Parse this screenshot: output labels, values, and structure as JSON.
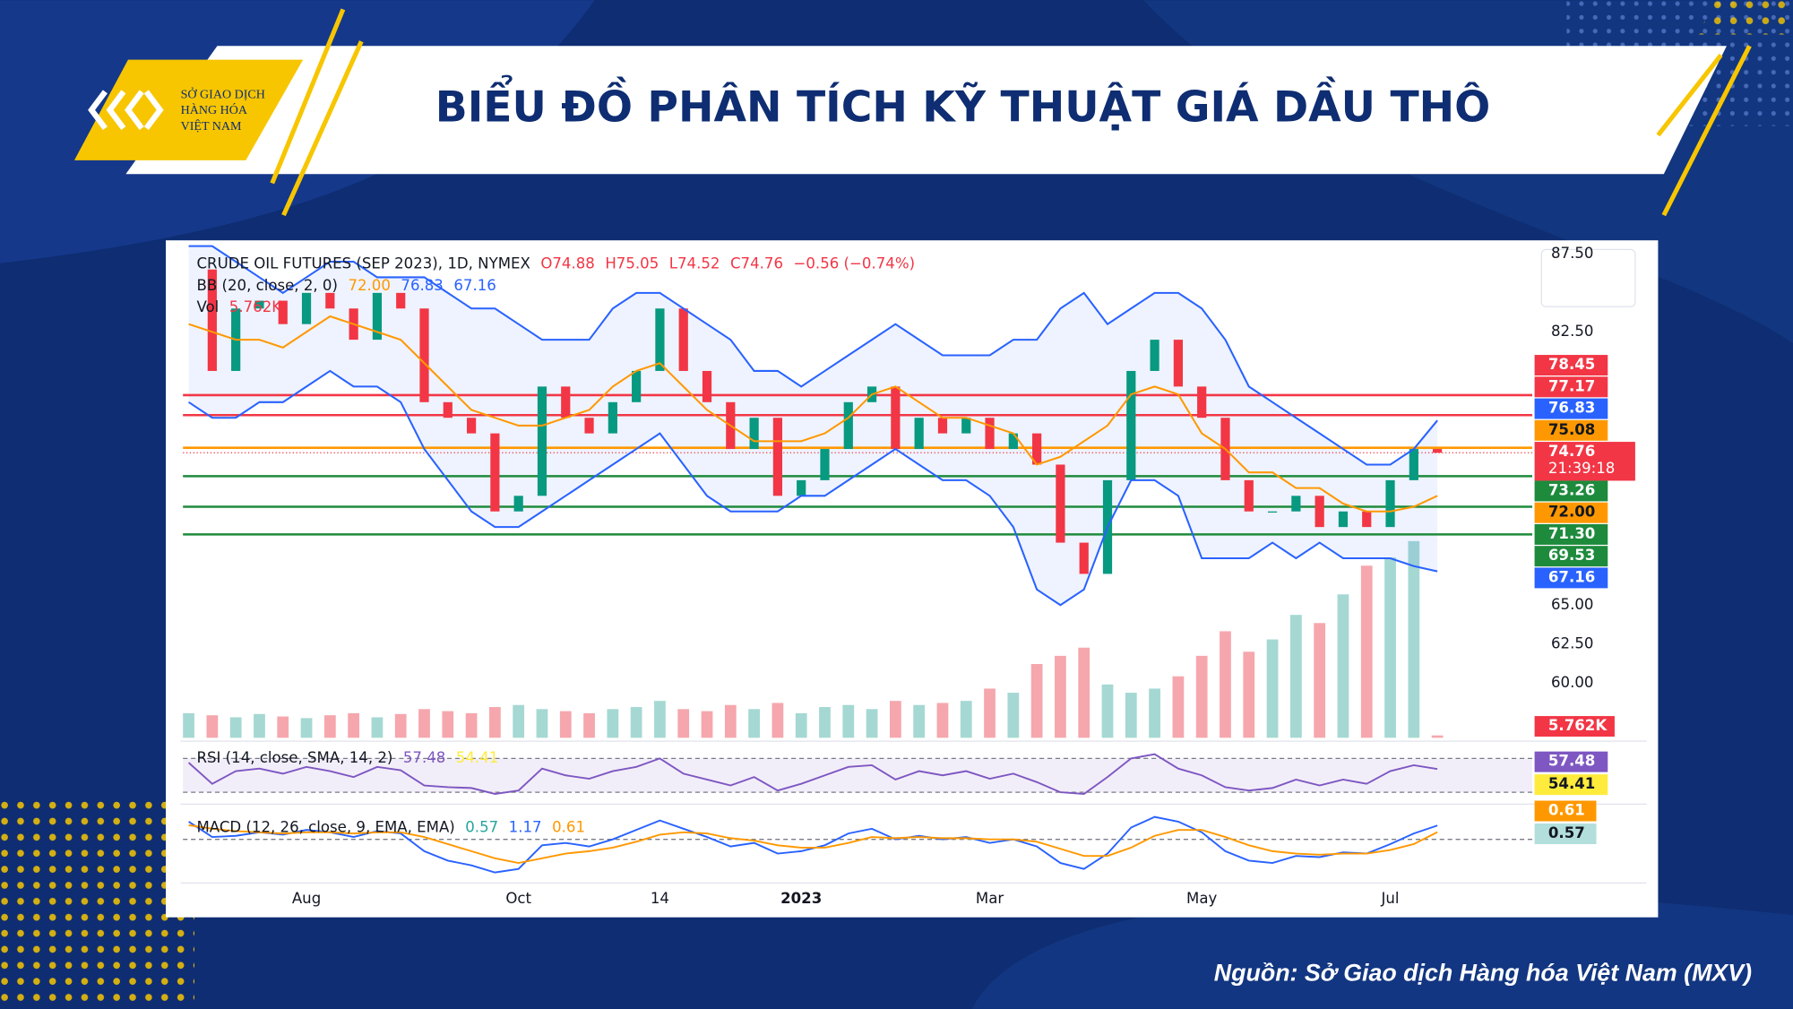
{
  "header": {
    "logo_lines": [
      "SỞ GIAO DỊCH",
      "HÀNG HÓA",
      "VIỆT NAM"
    ],
    "title": "BIỂU ĐỒ PHÂN TÍCH KỸ THUẬT GIÁ DẦU THÔ"
  },
  "chart_data": {
    "type": "line",
    "legend": [
      [
        {
          "text": "CRUDE OIL FUTURES (SEP 2023), 1D, NYMEX",
          "color": "#131722"
        },
        {
          "text": "O74.88",
          "color": "#f23645"
        },
        {
          "text": "H75.05",
          "color": "#f23645"
        },
        {
          "text": "L74.52",
          "color": "#f23645"
        },
        {
          "text": "C74.76",
          "color": "#f23645"
        },
        {
          "text": "−0.56 (−0.74%)",
          "color": "#f23645"
        }
      ],
      [
        {
          "text": "BB (20, close, 2, 0)",
          "color": "#131722"
        },
        {
          "text": "72.00",
          "color": "#ff9800"
        },
        {
          "text": "76.83",
          "color": "#2962ff"
        },
        {
          "text": "67.16",
          "color": "#2962ff"
        }
      ],
      [
        {
          "text": "Vol",
          "color": "#131722"
        },
        {
          "text": "5.762K",
          "color": "#f23645"
        }
      ]
    ],
    "categories": [
      null,
      null,
      null,
      null,
      null,
      "Aug",
      null,
      null,
      null,
      null,
      null,
      null,
      null,
      null,
      "Oct",
      null,
      null,
      null,
      null,
      null,
      "14",
      null,
      null,
      null,
      null,
      null,
      "2023",
      null,
      null,
      null,
      null,
      null,
      null,
      null,
      "Mar",
      null,
      null,
      null,
      null,
      null,
      null,
      null,
      null,
      "May",
      null,
      null,
      null,
      null,
      null,
      null,
      null,
      "Jul",
      null,
      null
    ],
    "series": [
      {
        "name": "close",
        "color": "#131722",
        "values": [
          86.5,
          80,
          84,
          84.5,
          83,
          85,
          84,
          82,
          85,
          84,
          78,
          77,
          76,
          71,
          72,
          79,
          77,
          76,
          78,
          80,
          84,
          80,
          78,
          75,
          77,
          72,
          73,
          75,
          78,
          79,
          75,
          77,
          76,
          77,
          75,
          76,
          74,
          69,
          67,
          73,
          80,
          82,
          79,
          77,
          73,
          71,
          71,
          72,
          70,
          71,
          70,
          73,
          75,
          74.76
        ]
      },
      {
        "name": "bb_upper",
        "color": "#2962ff",
        "values": [
          88,
          88,
          87,
          86,
          85,
          86,
          87,
          87,
          86,
          86,
          86,
          85,
          84,
          84,
          83,
          82,
          82,
          82,
          84,
          85,
          85,
          84,
          83,
          82,
          80,
          80,
          79,
          80,
          81,
          82,
          83,
          82,
          81,
          81,
          81,
          82,
          82,
          84,
          85,
          83,
          84,
          85,
          85,
          84,
          82,
          79,
          78,
          77,
          76,
          75,
          74,
          74,
          75,
          76.83
        ]
      },
      {
        "name": "bb_basis",
        "color": "#ff9800",
        "values": [
          83,
          82.5,
          82,
          82,
          81.5,
          82.5,
          83.5,
          83,
          82.5,
          82,
          80.5,
          79,
          77.5,
          77,
          76.5,
          76.5,
          77,
          77.5,
          79,
          80,
          80.5,
          79,
          77.5,
          76.5,
          75.5,
          75.5,
          75.5,
          76,
          77,
          78.5,
          79,
          78,
          77,
          77,
          76.5,
          76,
          74,
          74.5,
          75.5,
          76.5,
          78.5,
          79,
          78.5,
          76,
          75,
          73.5,
          73.5,
          72.5,
          72.5,
          71.5,
          71,
          71,
          71.3,
          72
        ]
      },
      {
        "name": "bb_lower",
        "color": "#2962ff",
        "values": [
          78,
          77,
          77,
          78,
          78,
          79,
          80,
          79,
          79,
          78,
          75,
          73,
          71,
          70,
          70,
          71,
          72,
          73,
          74,
          75,
          76,
          74,
          72,
          71,
          71,
          71,
          72,
          72,
          73,
          74,
          75,
          74,
          73,
          73,
          72,
          70,
          66,
          65,
          66,
          70,
          73,
          73,
          72,
          68,
          68,
          68,
          69,
          68,
          69,
          68,
          68,
          68,
          67.5,
          67.16
        ]
      }
    ],
    "ylim": [
      56.5,
      88
    ],
    "yticks": [
      {
        "value": 87.5,
        "label": "87.50"
      },
      {
        "value": 82.5,
        "label": "82.50"
      },
      {
        "value": 65,
        "label": "65.00"
      },
      {
        "value": 62.5,
        "label": "62.50"
      },
      {
        "value": 60,
        "label": "60.00"
      }
    ],
    "price_levels": [
      {
        "value": 78.45,
        "label": "78.45",
        "color": "#f23645",
        "line": true
      },
      {
        "value": 77.17,
        "label": "77.17",
        "color": "#f23645",
        "line": true
      },
      {
        "value": 76.83,
        "label": "76.83",
        "color": "#2962ff",
        "line": false
      },
      {
        "value": 75.08,
        "label": "75.08",
        "color": "#ff9800",
        "line": true
      },
      {
        "value": 74.76,
        "label": "74.76",
        "sublabel": "21:39:18",
        "color": "#f23645",
        "line": false
      },
      {
        "value": 73.26,
        "label": "73.26",
        "color": "#1e8a3c",
        "line": true
      },
      {
        "value": 72.0,
        "label": "72.00",
        "color": "#ff9800",
        "line": false
      },
      {
        "value": 71.3,
        "label": "71.30",
        "color": "#1e8a3c",
        "line": true
      },
      {
        "value": 69.53,
        "label": "69.53",
        "color": "#1e8a3c",
        "line": true
      },
      {
        "value": 67.16,
        "label": "67.16",
        "color": "#2962ff",
        "line": false
      }
    ],
    "volume": {
      "values": [
        60,
        55,
        50,
        58,
        52,
        48,
        55,
        60,
        50,
        58,
        70,
        65,
        60,
        75,
        80,
        70,
        65,
        60,
        70,
        75,
        90,
        70,
        65,
        80,
        70,
        85,
        60,
        75,
        80,
        70,
        90,
        80,
        85,
        90,
        120,
        110,
        180,
        200,
        220,
        130,
        110,
        120,
        150,
        200,
        260,
        210,
        240,
        300,
        280,
        350,
        420,
        440,
        480,
        5.762
      ],
      "ylim": [
        0,
        1200
      ],
      "label": "5.762K",
      "up_color": "#a5d8d3",
      "down_color": "#f5a7ad"
    },
    "rsi": {
      "title": "RSI (14, close, SMA, 14, 2)",
      "labels": [
        {
          "text": "57.48",
          "color": "#7e57c2"
        },
        {
          "text": "54.41",
          "color": "#ffeb3b"
        }
      ],
      "color": "#7e57c2",
      "ylim": [
        20,
        85
      ],
      "levels": [
        70,
        30
      ],
      "values": [
        65,
        40,
        55,
        58,
        52,
        60,
        55,
        48,
        60,
        56,
        38,
        36,
        35,
        28,
        32,
        58,
        50,
        46,
        55,
        60,
        70,
        52,
        45,
        38,
        48,
        32,
        40,
        50,
        60,
        62,
        45,
        55,
        50,
        55,
        46,
        52,
        42,
        30,
        28,
        48,
        70,
        75,
        58,
        50,
        36,
        32,
        35,
        45,
        38,
        45,
        40,
        55,
        62,
        57.48
      ]
    },
    "macd": {
      "title": "MACD (12, 26, close, 9, EMA, EMA)",
      "labels": [
        {
          "text": "0.57",
          "color": "#26a69a"
        },
        {
          "text": "1.17",
          "color": "#2962ff"
        },
        {
          "text": "0.61",
          "color": "#ff9800"
        }
      ],
      "ylim": [
        -3.5,
        2.5
      ],
      "macd": [
        1.5,
        0.2,
        0.3,
        0.6,
        0.4,
        0.8,
        0.6,
        0.2,
        0.7,
        0.5,
        -1,
        -1.8,
        -2.2,
        -2.8,
        -2.5,
        -0.5,
        -0.3,
        -0.6,
        0,
        0.8,
        1.6,
        0.9,
        0.2,
        -0.6,
        -0.3,
        -1.2,
        -1,
        -0.5,
        0.5,
        0.9,
        0,
        0.3,
        0,
        0.2,
        -0.3,
        0,
        -0.6,
        -2,
        -2.5,
        -1.2,
        1,
        1.9,
        1.5,
        0.6,
        -1,
        -1.8,
        -2,
        -1.4,
        -1.5,
        -1.1,
        -1.2,
        -0.4,
        0.5,
        1.17
      ],
      "signal": [
        1.2,
        0.9,
        0.7,
        0.6,
        0.5,
        0.6,
        0.6,
        0.5,
        0.6,
        0.6,
        0.2,
        -0.4,
        -1,
        -1.6,
        -2,
        -1.6,
        -1.2,
        -1,
        -0.7,
        -0.2,
        0.4,
        0.6,
        0.5,
        0.1,
        -0.1,
        -0.5,
        -0.7,
        -0.7,
        -0.3,
        0.2,
        0.1,
        0.2,
        0.1,
        0.1,
        0,
        0,
        -0.2,
        -0.8,
        -1.4,
        -1.4,
        -0.7,
        0.3,
        0.8,
        0.8,
        0.2,
        -0.5,
        -1,
        -1.2,
        -1.3,
        -1.2,
        -1.2,
        -0.9,
        -0.4,
        0.61
      ]
    }
  },
  "source": "Nguồn: Sở Giao dịch Hàng hóa Việt Nam (MXV)"
}
